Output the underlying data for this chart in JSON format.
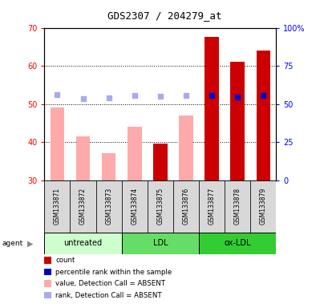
{
  "title": "GDS2307 / 204279_at",
  "samples": [
    "GSM133871",
    "GSM133872",
    "GSM133873",
    "GSM133874",
    "GSM133875",
    "GSM133876",
    "GSM133877",
    "GSM133878",
    "GSM133879"
  ],
  "value_absent": [
    49.0,
    41.5,
    37.0,
    44.0,
    null,
    47.0,
    null,
    null,
    null
  ],
  "rank_absent": [
    52.5,
    51.3,
    51.5,
    52.3,
    52.0,
    52.3,
    null,
    null,
    null
  ],
  "count": [
    null,
    null,
    null,
    null,
    39.5,
    null,
    67.5,
    61.0,
    64.0
  ],
  "percentile": [
    null,
    null,
    null,
    null,
    null,
    null,
    55.5,
    54.7,
    55.5
  ],
  "ylim_left": [
    30,
    70
  ],
  "ylim_right": [
    0,
    100
  ],
  "yticks_left": [
    30,
    40,
    50,
    60,
    70
  ],
  "yticks_right": [
    0,
    25,
    50,
    75,
    100
  ],
  "ytick_labels_right": [
    "0",
    "25",
    "50",
    "75",
    "100%"
  ],
  "color_count": "#cc0000",
  "color_percentile": "#0000cc",
  "color_value_absent": "#ffaaaa",
  "color_rank_absent": "#aaaaee",
  "groups": [
    {
      "label": "untreated",
      "start": 0,
      "end": 2,
      "color": "#ccffcc"
    },
    {
      "label": "LDL",
      "start": 3,
      "end": 5,
      "color": "#66dd66"
    },
    {
      "label": "ox-LDL",
      "start": 6,
      "end": 8,
      "color": "#33cc33"
    }
  ],
  "legend_items": [
    {
      "label": "count",
      "color": "#cc0000"
    },
    {
      "label": "percentile rank within the sample",
      "color": "#0000cc"
    },
    {
      "label": "value, Detection Call = ABSENT",
      "color": "#ffaaaa"
    },
    {
      "label": "rank, Detection Call = ABSENT",
      "color": "#aaaaee"
    }
  ]
}
